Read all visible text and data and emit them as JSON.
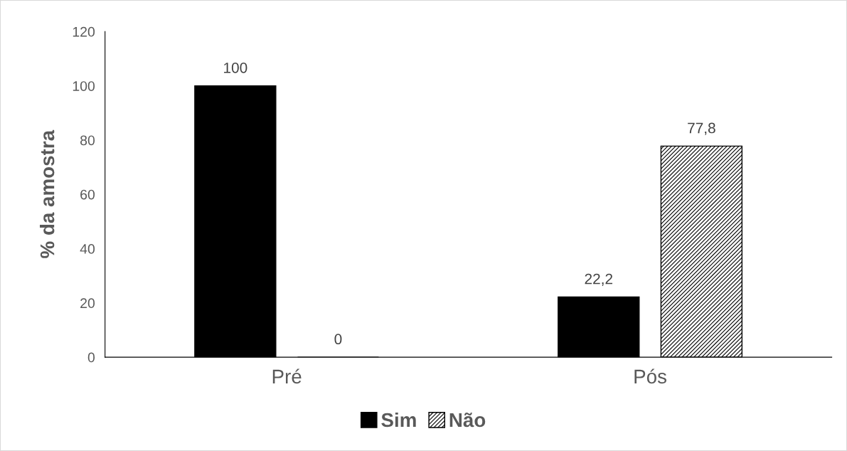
{
  "chart_data": {
    "type": "bar",
    "ylabel": "% da amostra",
    "categories": [
      "Pré",
      "Pós"
    ],
    "series": [
      {
        "name": "Sim",
        "color": "#000000",
        "values": [
          100,
          22.2
        ],
        "value_labels": [
          "100",
          "22,2"
        ]
      },
      {
        "name": "Não",
        "color": "#000000",
        "values": [
          0,
          77.8
        ],
        "value_labels": [
          "0",
          "77,8"
        ]
      }
    ],
    "ylim": [
      0,
      120
    ],
    "yticks": [
      0,
      20,
      40,
      60,
      80,
      100,
      120
    ],
    "grid": false,
    "legend": "bottom"
  }
}
